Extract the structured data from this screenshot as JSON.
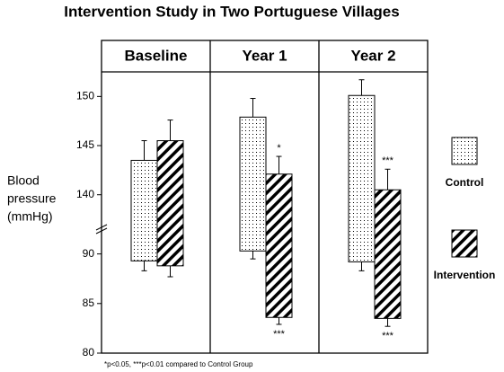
{
  "chart_data": {
    "type": "floating-bar",
    "title": "Intervention Study in Two Portuguese Villages",
    "ylabel": [
      "Blood",
      "pressure",
      "(mmHg)"
    ],
    "categories": [
      "Baseline",
      "Year 1",
      "Year 2"
    ],
    "ylim": [
      80,
      152.5
    ],
    "ybreak": [
      92.5,
      136.5
    ],
    "yticks": [
      80,
      85,
      90,
      140,
      145,
      150
    ],
    "series": [
      {
        "name": "Control",
        "pattern": "dots",
        "color": "#000000",
        "high": [
          143.5,
          147.9,
          150.1
        ],
        "low": [
          89.3,
          90.3,
          89.2
        ],
        "high_whisker": [
          145.5,
          149.8,
          151.7
        ],
        "low_whisker": [
          88.3,
          89.5,
          88.3
        ]
      },
      {
        "name": "Intervention",
        "pattern": "hatch",
        "color": "#000000",
        "high": [
          145.5,
          142.1,
          140.5
        ],
        "low": [
          88.8,
          83.6,
          83.5
        ],
        "high_whisker": [
          147.6,
          143.9,
          142.6
        ],
        "low_whisker": [
          87.7,
          82.9,
          82.7
        ],
        "high_labels": [
          null,
          "*",
          "***"
        ],
        "low_labels": [
          null,
          "***",
          "***"
        ]
      }
    ],
    "footnote": "*p<0.05, ***p<0.01 compared to Control Group"
  }
}
